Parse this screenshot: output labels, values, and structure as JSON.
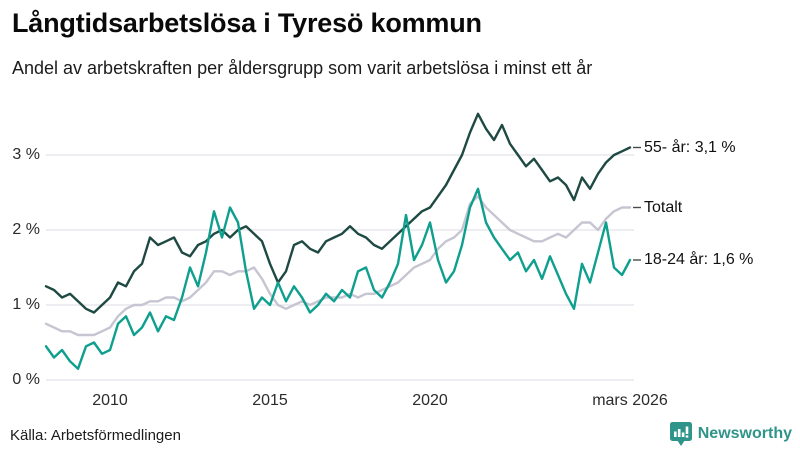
{
  "title": "Långtidsarbetslösa i Tyresö kommun",
  "subtitle": "Andel av arbetskraften per åldersgrupp som varit arbetslösa i minst ett år",
  "source": "Källa: Arbetsförmedlingen",
  "brand": {
    "name": "Newsworthy",
    "color": "#2f948a"
  },
  "chart_data": {
    "type": "line",
    "title": "Långtidsarbetslösa i Tyresö kommun",
    "subtitle": "Andel av arbetskraften per åldersgrupp som varit arbetslösa i minst ett år",
    "x_unit": "year",
    "x_start": 2008.0,
    "x_step": 0.25,
    "x_end": 2026.25,
    "ylim": [
      0,
      3.7
    ],
    "grid": true,
    "yticks": [
      {
        "value": 0,
        "label": "0 %"
      },
      {
        "value": 1,
        "label": "1 %"
      },
      {
        "value": 2,
        "label": "2 %"
      },
      {
        "value": 3,
        "label": "3 %"
      }
    ],
    "xticks": [
      {
        "value": 2010,
        "label": "2010"
      },
      {
        "value": 2015,
        "label": "2015"
      },
      {
        "value": 2020,
        "label": "2020"
      },
      {
        "value": 2026.25,
        "label": "mars 2026"
      }
    ],
    "legend_position": "right-edge-labels",
    "series": [
      {
        "name": "55- år",
        "end_label": "55- år: 3,1 %",
        "end_value": 3.1,
        "color": "#1e4a43",
        "z": 2,
        "values": [
          1.25,
          1.2,
          1.1,
          1.15,
          1.05,
          0.95,
          0.9,
          1.0,
          1.1,
          1.3,
          1.25,
          1.45,
          1.55,
          1.9,
          1.8,
          1.85,
          1.9,
          1.7,
          1.65,
          1.8,
          1.85,
          1.95,
          2.0,
          1.9,
          2.0,
          2.05,
          1.95,
          1.85,
          1.55,
          1.3,
          1.45,
          1.8,
          1.85,
          1.75,
          1.7,
          1.85,
          1.9,
          1.95,
          2.05,
          1.95,
          1.9,
          1.8,
          1.75,
          1.85,
          1.95,
          2.05,
          2.15,
          2.25,
          2.3,
          2.45,
          2.6,
          2.8,
          3.0,
          3.3,
          3.55,
          3.35,
          3.2,
          3.4,
          3.15,
          3.0,
          2.85,
          2.95,
          2.8,
          2.65,
          2.7,
          2.6,
          2.4,
          2.7,
          2.55,
          2.75,
          2.9,
          3.0,
          3.05,
          3.1
        ]
      },
      {
        "name": "Totalt",
        "end_label": "Totalt",
        "end_value": 2.3,
        "color": "#c7c5d2",
        "z": 1,
        "values": [
          0.75,
          0.7,
          0.65,
          0.65,
          0.6,
          0.6,
          0.6,
          0.65,
          0.7,
          0.85,
          0.95,
          1.0,
          1.0,
          1.05,
          1.05,
          1.1,
          1.1,
          1.05,
          1.1,
          1.2,
          1.3,
          1.45,
          1.45,
          1.4,
          1.45,
          1.45,
          1.5,
          1.35,
          1.15,
          1.0,
          0.95,
          1.0,
          1.05,
          1.0,
          1.05,
          1.1,
          1.1,
          1.1,
          1.15,
          1.1,
          1.15,
          1.15,
          1.2,
          1.25,
          1.3,
          1.4,
          1.5,
          1.55,
          1.6,
          1.75,
          1.85,
          1.9,
          2.0,
          2.35,
          2.45,
          2.3,
          2.2,
          2.1,
          2.0,
          1.95,
          1.9,
          1.85,
          1.85,
          1.9,
          1.95,
          1.9,
          2.0,
          2.1,
          2.1,
          2.0,
          2.15,
          2.25,
          2.3,
          2.3
        ]
      },
      {
        "name": "18-24 år",
        "end_label": "18-24 år: 1,6 %",
        "end_value": 1.6,
        "color": "#0f9f8e",
        "z": 3,
        "values": [
          0.45,
          0.3,
          0.4,
          0.25,
          0.15,
          0.45,
          0.5,
          0.35,
          0.4,
          0.75,
          0.85,
          0.6,
          0.7,
          0.9,
          0.65,
          0.85,
          0.8,
          1.1,
          1.5,
          1.25,
          1.7,
          2.25,
          1.9,
          2.3,
          2.1,
          1.45,
          0.95,
          1.1,
          1.0,
          1.3,
          1.05,
          1.25,
          1.1,
          0.9,
          1.0,
          1.15,
          1.05,
          1.2,
          1.1,
          1.45,
          1.5,
          1.2,
          1.1,
          1.3,
          1.55,
          2.2,
          1.6,
          1.8,
          2.1,
          1.6,
          1.3,
          1.45,
          1.8,
          2.3,
          2.55,
          2.1,
          1.9,
          1.75,
          1.6,
          1.7,
          1.45,
          1.6,
          1.35,
          1.65,
          1.4,
          1.15,
          0.95,
          1.55,
          1.3,
          1.7,
          2.1,
          1.5,
          1.4,
          1.6
        ]
      }
    ],
    "xlabel": "",
    "ylabel": ""
  }
}
